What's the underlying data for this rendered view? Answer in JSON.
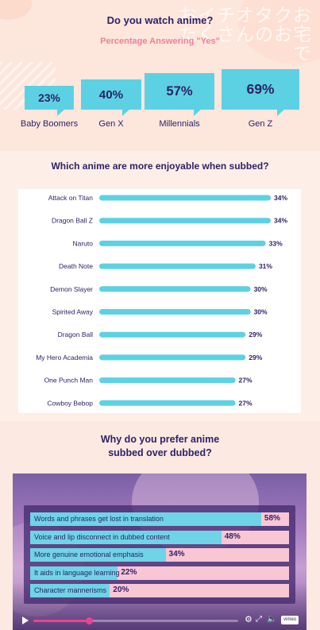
{
  "survey": {
    "title": "Do you watch anime?",
    "subtitle": "Percentage Answering \"Yes\"",
    "decor_text": "おイチオタクおたくさんのお宅で"
  },
  "chart_data": [
    {
      "type": "bar",
      "categories": [
        "Baby Boomers",
        "Gen X",
        "Millennials",
        "Gen Z"
      ],
      "values": [
        23,
        40,
        57,
        69
      ],
      "value_labels": [
        "23%",
        "40%",
        "57%",
        "69%"
      ],
      "title": "Do you watch anime?",
      "subtitle": "Percentage Answering \"Yes\""
    },
    {
      "type": "bar",
      "orientation": "horizontal",
      "title": "Which anime are more enjoyable when subbed?",
      "categories": [
        "Attack on Titan",
        "Dragon Ball Z",
        "Naruto",
        "Death Note",
        "Demon Slayer",
        "Spirited Away",
        "Dragon Ball",
        "My Hero Academia",
        "One Punch Man",
        "Cowboy Bebop"
      ],
      "values": [
        34,
        34,
        33,
        31,
        30,
        30,
        29,
        29,
        27,
        27
      ],
      "value_labels": [
        "34%",
        "34%",
        "33%",
        "31%",
        "30%",
        "30%",
        "29%",
        "29%",
        "27%",
        "27%"
      ],
      "xlim": [
        0,
        34
      ]
    },
    {
      "type": "bar",
      "orientation": "horizontal",
      "title": "Why do you prefer anime subbed over dubbed?",
      "categories": [
        "Words and phrases get lost in translation",
        "Voice and lip disconnect in dubbed content",
        "More genuine emotional emphasis",
        "It aids in language learning",
        "Character mannerisms"
      ],
      "values": [
        58,
        48,
        34,
        22,
        20
      ],
      "value_labels": [
        "58%",
        "48%",
        "34%",
        "22%",
        "20%"
      ],
      "xlim": [
        0,
        65
      ]
    }
  ],
  "section2": {
    "title": "Which anime are more enjoyable when subbed?"
  },
  "section3": {
    "title_line1": "Why do you prefer anime",
    "title_line2": "subbed over dubbed?"
  },
  "player": {
    "progress": 0.27,
    "brand": "vimeo"
  },
  "colors": {
    "accent": "#5dd1e4",
    "navy": "#2e2266",
    "pink": "#ef7f9c",
    "track_pink": "#f0418c",
    "row_pink": "#f9c7d4"
  }
}
